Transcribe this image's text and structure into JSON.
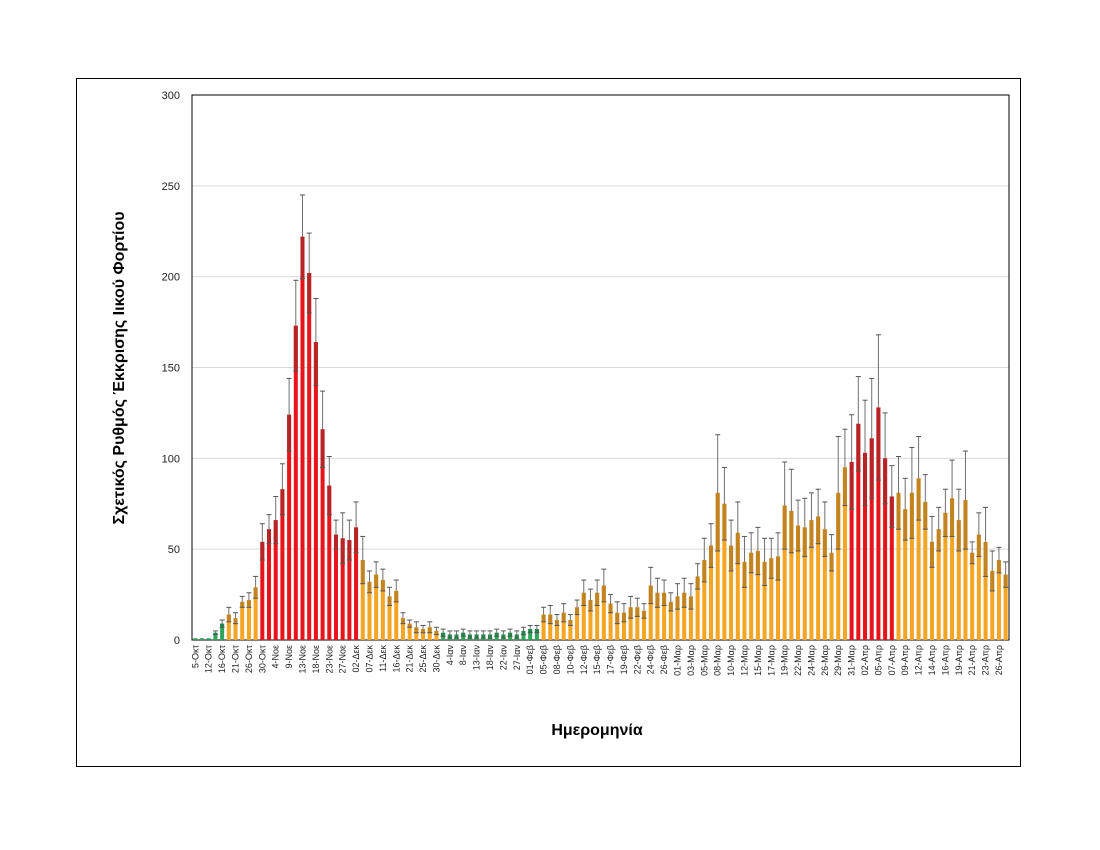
{
  "chart_data": {
    "type": "bar",
    "title": "",
    "xlabel": "Ημερομηνία",
    "ylabel": "Σχετικός Ρυθμός Έκκρισης Ιικού Φορτίου",
    "ylim": [
      0,
      300
    ],
    "yticks": [
      0,
      50,
      100,
      150,
      200,
      250,
      300
    ],
    "grid": true,
    "legend": "none",
    "colors": {
      "green": "#2ea55a",
      "orange": "#f5a524",
      "red": "#e8141b",
      "error": "#707070"
    },
    "categories": [
      "5-Οκτ",
      "",
      "12-Οκτ",
      "",
      "16-Οκτ",
      "",
      "21-Οκτ",
      "",
      "26-Οκτ",
      "",
      "30-Οκτ",
      "",
      "4-Νοε",
      "",
      "9-Νοε",
      "",
      "13-Νοε",
      "",
      "18-Νοε",
      "",
      "23-Νοε",
      "",
      "27-Νοε",
      "",
      "02-Δεκ",
      "",
      "07-Δεκ",
      "",
      "11-Δεκ",
      "",
      "16-Δεκ",
      "",
      "21-Δεκ",
      "",
      "25-Δεκ",
      "",
      "30-Δεκ",
      "",
      "4-Ιαν",
      "",
      "8-Ιαν",
      "",
      "13-Ιαν",
      "",
      "18-Ιαν",
      "",
      "22-Ιαν",
      "",
      "27-Ιαν",
      "",
      "01-Φεβ",
      "",
      "05-Φεβ",
      "",
      "08-Φεβ",
      "",
      "10-Φεβ",
      "",
      "12-Φεβ",
      "",
      "15-Φεβ",
      "",
      "17-Φεβ",
      "",
      "19-Φεβ",
      "",
      "22-Φεβ",
      "",
      "24-Φεβ",
      "",
      "26-Φεβ",
      "",
      "01-Μαρ",
      "",
      "03-Μαρ",
      "",
      "05-Μαρ",
      "",
      "08-Μαρ",
      "",
      "10-Μαρ",
      "",
      "12-Μαρ",
      "",
      "15-Μαρ",
      "",
      "17-Μαρ",
      "",
      "19-Μαρ",
      "",
      "22-Μαρ",
      "",
      "24-Μαρ",
      "",
      "26-Μαρ",
      "",
      "29-Μαρ",
      "",
      "31-Μαρ",
      "",
      "02-Απρ",
      "",
      "05-Απρ",
      "",
      "07-Απρ",
      "",
      "09-Απρ",
      "",
      "12-Απρ",
      "",
      "14-Απρ",
      "",
      "16-Απρ",
      "",
      "19-Απρ",
      "",
      "21-Απρ",
      "",
      "23-Απρ",
      "",
      "26-Απρ",
      ""
    ],
    "values": [
      1,
      1,
      1,
      4,
      9,
      14,
      12,
      21,
      22,
      29,
      54,
      61,
      66,
      83,
      124,
      173,
      222,
      202,
      164,
      116,
      85,
      58,
      56,
      55,
      62,
      44,
      32,
      36,
      33,
      24,
      27,
      12,
      9,
      7,
      6,
      7,
      5,
      4,
      3,
      3,
      4,
      3,
      3,
      3,
      3,
      4,
      3,
      4,
      3,
      5,
      6,
      6,
      14,
      14,
      11,
      15,
      11,
      18,
      26,
      22,
      26,
      30,
      20,
      15,
      15,
      18,
      18,
      16,
      30,
      26,
      26,
      21,
      24,
      26,
      24,
      35,
      44,
      52,
      81,
      75,
      52,
      59,
      43,
      48,
      49,
      43,
      45,
      46,
      74,
      71,
      63,
      62,
      66,
      68,
      61,
      48,
      81,
      95,
      98,
      119,
      103,
      111,
      128,
      100,
      79,
      81,
      72,
      81,
      89,
      76,
      54,
      61,
      70,
      78,
      66,
      77,
      48,
      58,
      54,
      38,
      44,
      36
    ],
    "errors": [
      0,
      0,
      0,
      1,
      2,
      4,
      3,
      3,
      4,
      6,
      10,
      8,
      13,
      14,
      20,
      25,
      23,
      22,
      24,
      21,
      16,
      8,
      14,
      11,
      14,
      13,
      6,
      7,
      6,
      5,
      6,
      3,
      2,
      3,
      2,
      3,
      2,
      2,
      2,
      2,
      2,
      2,
      2,
      2,
      2,
      2,
      2,
      2,
      2,
      2,
      2,
      2,
      4,
      5,
      3,
      5,
      3,
      4,
      7,
      6,
      7,
      9,
      5,
      6,
      5,
      6,
      5,
      4,
      10,
      8,
      7,
      5,
      7,
      8,
      7,
      7,
      12,
      12,
      32,
      20,
      14,
      17,
      14,
      11,
      13,
      13,
      11,
      13,
      24,
      23,
      14,
      16,
      15,
      15,
      15,
      10,
      31,
      21,
      26,
      26,
      29,
      33,
      40,
      25,
      17,
      20,
      17,
      25,
      23,
      15,
      14,
      12,
      13,
      21,
      17,
      27,
      6,
      12,
      19,
      11,
      7,
      7
    ],
    "bar_colors": [
      "green",
      "green",
      "green",
      "green",
      "green",
      "orange",
      "orange",
      "orange",
      "orange",
      "orange",
      "red",
      "red",
      "red",
      "red",
      "red",
      "red",
      "red",
      "red",
      "red",
      "red",
      "red",
      "red",
      "red",
      "red",
      "red",
      "orange",
      "orange",
      "orange",
      "orange",
      "orange",
      "orange",
      "orange",
      "orange",
      "orange",
      "orange",
      "orange",
      "orange",
      "green",
      "green",
      "green",
      "green",
      "green",
      "green",
      "green",
      "green",
      "green",
      "green",
      "green",
      "green",
      "green",
      "green",
      "green",
      "orange",
      "orange",
      "orange",
      "orange",
      "orange",
      "orange",
      "orange",
      "orange",
      "orange",
      "orange",
      "orange",
      "orange",
      "orange",
      "orange",
      "orange",
      "orange",
      "orange",
      "orange",
      "orange",
      "orange",
      "orange",
      "orange",
      "orange",
      "orange",
      "orange",
      "orange",
      "orange",
      "orange",
      "orange",
      "orange",
      "orange",
      "orange",
      "orange",
      "orange",
      "orange",
      "orange",
      "orange",
      "orange",
      "orange",
      "orange",
      "orange",
      "orange",
      "orange",
      "orange",
      "orange",
      "orange",
      "red",
      "red",
      "red",
      "red",
      "red",
      "red",
      "red",
      "orange",
      "orange",
      "orange",
      "orange",
      "orange",
      "orange",
      "orange",
      "orange",
      "orange",
      "orange",
      "orange",
      "orange",
      "orange",
      "orange",
      "orange",
      "orange",
      "orange",
      "orange"
    ]
  }
}
